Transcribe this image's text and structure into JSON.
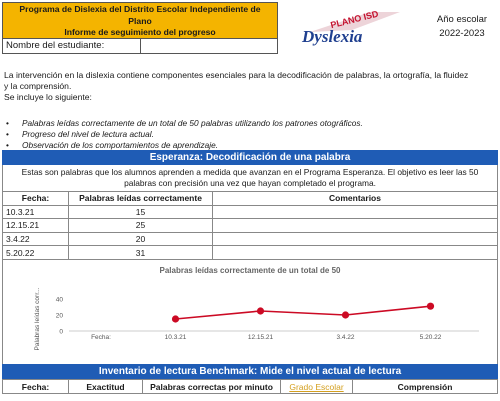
{
  "header": {
    "program_line1": "Programa de Dislexia del Distrito Escolar Independiente de",
    "program_line2": "Plano",
    "program_line3": "Informe de seguimiento del progreso",
    "student_label": "Nombre del estudiante:",
    "student_value": ""
  },
  "logo": {
    "top_text": "PLANO ISD",
    "bottom_text": "Dyslexia"
  },
  "year": {
    "label": "Año escolar",
    "value": "2022-2023"
  },
  "intro": {
    "line1": "La intervención en la dislexia contiene componentes esenciales para la decodificación de palabras, la ortografía, la fluidez",
    "line2": "y la comprensión.",
    "line3": "Se incluye lo siguiente:"
  },
  "bullets": [
    "Palabras leídas correctamente de un total de 50 palabras utilizando los patrones otográficos.",
    "Progreso del nivel de lectura actual.",
    "Observación de los comportamientos de aprendizaje."
  ],
  "section1": {
    "title": "Esperanza: Decodificación de una palabra",
    "desc_line1": "Estas son palabras que los alumnos aprenden a medida que avanzan en el Programa Esperanza.  El objetivo es leer las 50",
    "desc_line2": "palabras con precisión una vez que hayan completado el programa.",
    "columns": [
      "Fecha:",
      "Palabras leídas correctamente",
      "Comentarios"
    ],
    "rows": [
      {
        "date": "10.3.21",
        "value": "15",
        "comment": ""
      },
      {
        "date": "12.15.21",
        "value": "25",
        "comment": ""
      },
      {
        "date": "3.4.22",
        "value": "20",
        "comment": ""
      },
      {
        "date": "5.20.22",
        "value": "31",
        "comment": ""
      }
    ]
  },
  "chart_data": {
    "type": "line",
    "title": "Palabras leídas correctamente de un total de 50",
    "ylabel": "Palabras leídas corr...",
    "x_axis_caption": "Fecha:",
    "categories": [
      "10.3.21",
      "12.15.21",
      "3.4.22",
      "5.20.22"
    ],
    "series": [
      {
        "values": [
          15,
          25,
          20,
          31
        ]
      }
    ],
    "yticks": [
      "0",
      "20",
      "40"
    ],
    "ylim": [
      0,
      40
    ],
    "line_color": "#cc0a24",
    "grid": false
  },
  "section2": {
    "title": "Inventario de lectura Benchmark:  Mide el nivel actual de lectura",
    "columns": [
      "Fecha:",
      "Exactitud",
      "Palabras correctas por minuto",
      "Grado Escolar",
      "Comprensión"
    ]
  }
}
